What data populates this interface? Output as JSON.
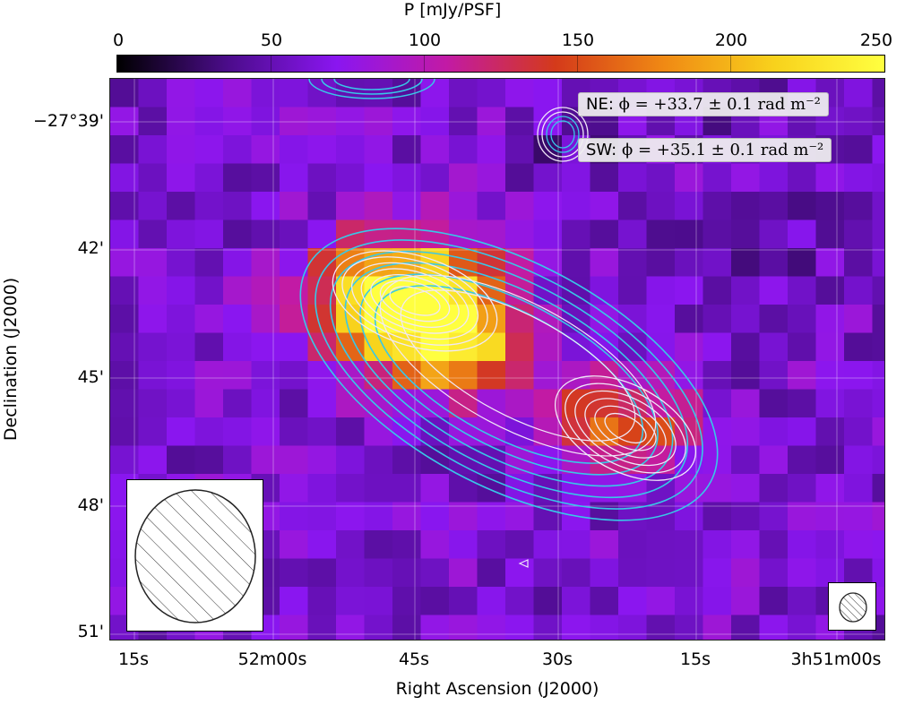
{
  "colorbar": {
    "title": "P [mJy/PSF]",
    "ticks": [
      "0",
      "50",
      "100",
      "150",
      "200",
      "250"
    ],
    "min": 0,
    "max": 250,
    "colormap": [
      "#000000",
      "#4b0c8a",
      "#8a16f0",
      "#c21aa5",
      "#d43a1a",
      "#f08a14",
      "#f8d21c",
      "#ffff40"
    ]
  },
  "axes": {
    "xlabel": "Right Ascension (J2000)",
    "ylabel": "Declination (J2000)",
    "xticks": [
      "15s",
      "52m00s",
      "45s",
      "30s",
      "15s",
      "3h51m00s"
    ],
    "yticks": [
      "−27°39'",
      "42'",
      "45'",
      "48'",
      "51'"
    ]
  },
  "legend": {
    "ne_label": "NE:",
    "ne_formula": "ϕ = +33.7 ± 0.1 rad m⁻²",
    "sw_label": "SW:",
    "sw_formula": "ϕ = +35.1 ± 0.1 rad m⁻²"
  },
  "contours": {
    "cyan_color": "#38c8e8",
    "white_color": "#f0e8f8"
  },
  "beams": {
    "large": "hatched-ellipse",
    "small": "hatched-ellipse"
  }
}
